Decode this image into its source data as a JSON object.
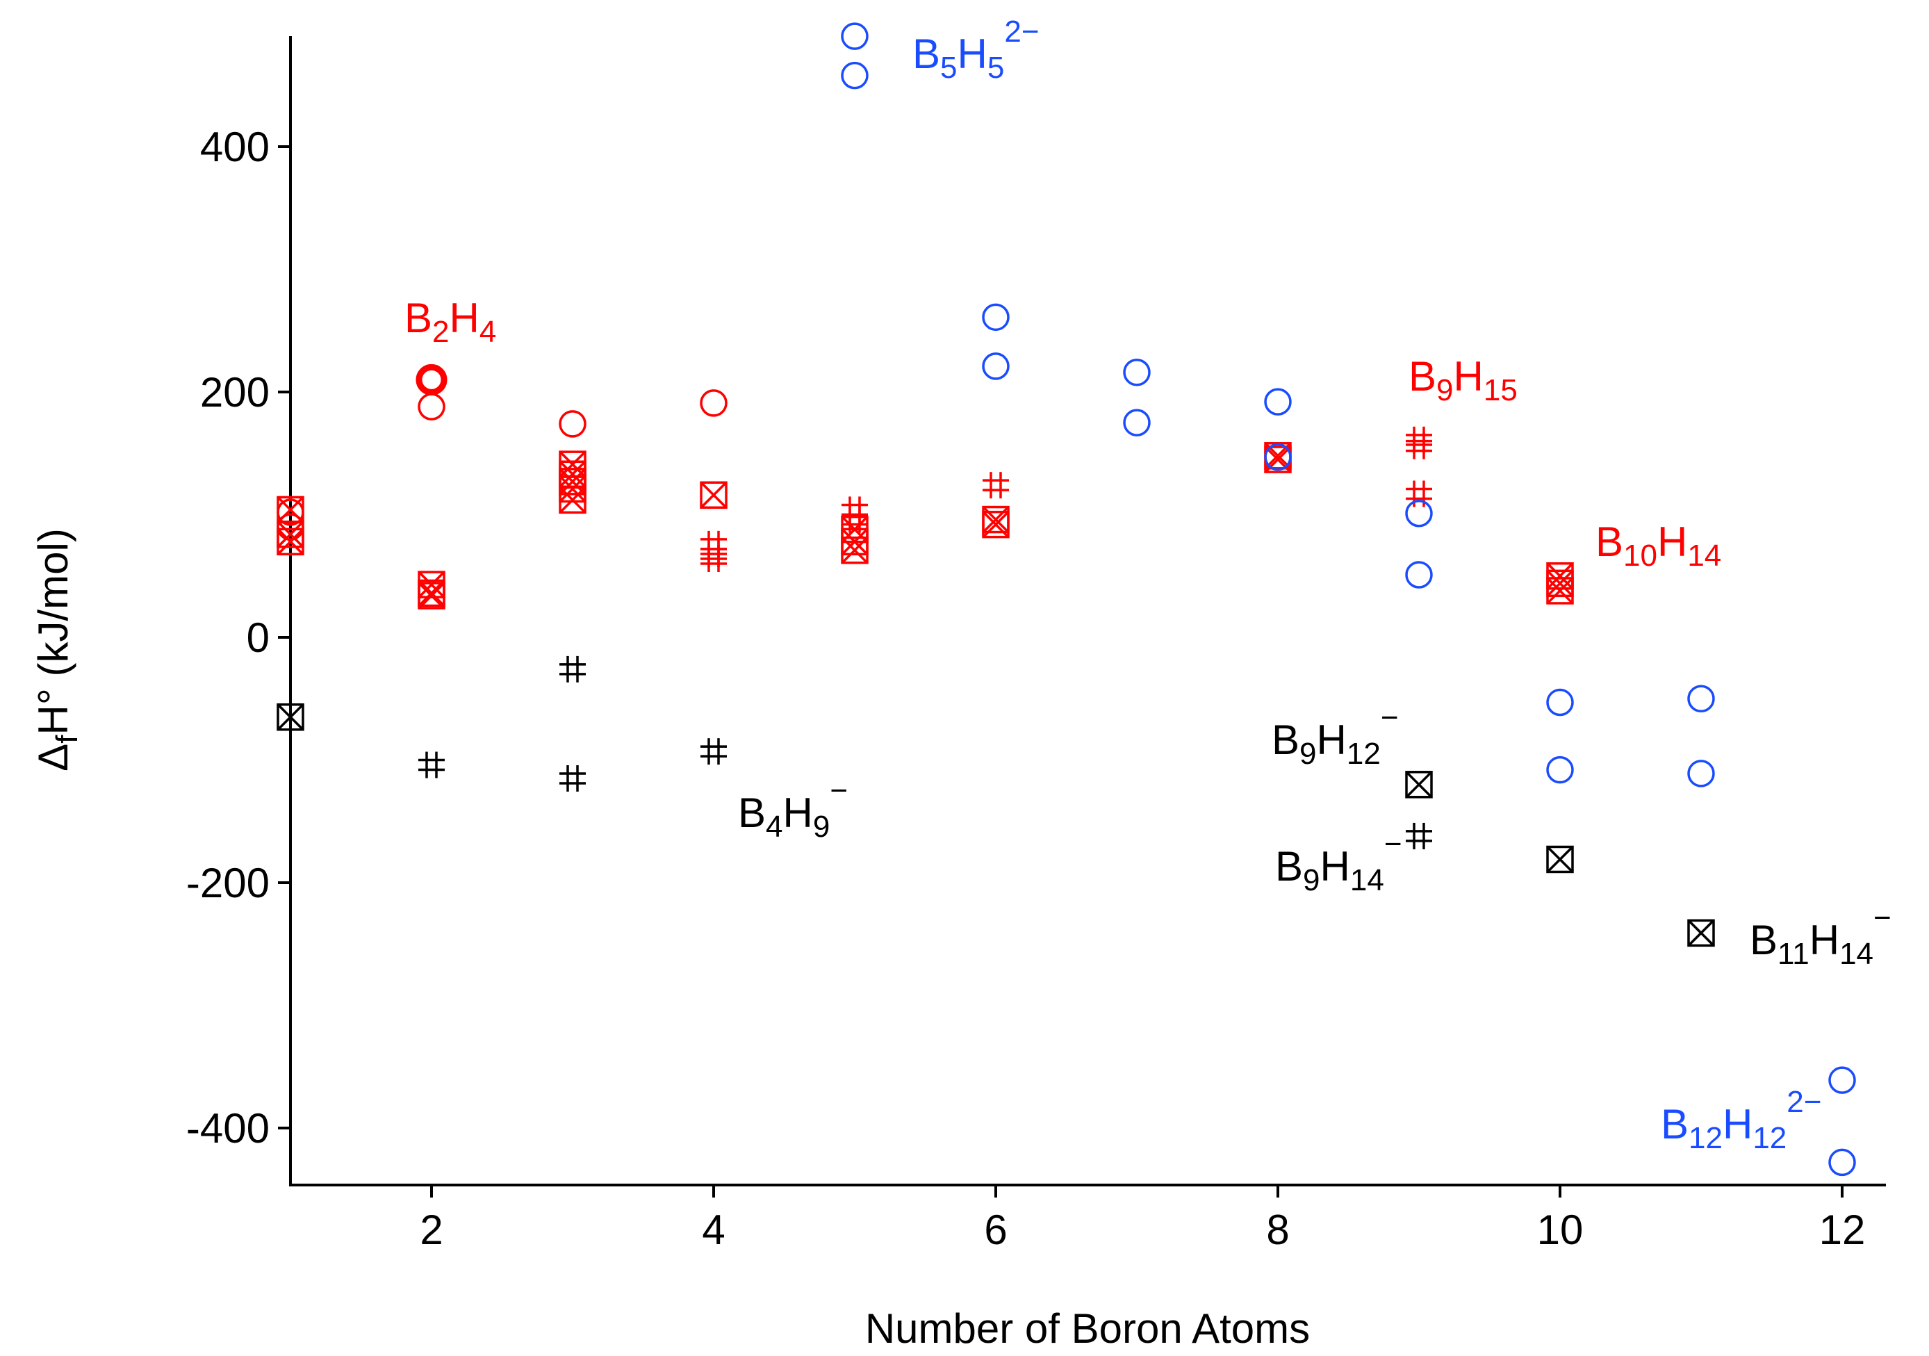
{
  "colors": {
    "red": "#ff0000",
    "blue": "#1a4cff",
    "black": "#000000"
  },
  "chart_data": {
    "type": "scatter",
    "xlabel": "Number of Boron Atoms",
    "ylabel": "ΔfH° (kJ/mol)",
    "ylabel_parts": {
      "pre": "Δ",
      "sub": "f",
      "post": "H° (kJ/mol)"
    },
    "xlim": [
      0.85,
      12.2
    ],
    "ylim": [
      -445,
      490
    ],
    "x_ticks": [
      2,
      4,
      6,
      8,
      10,
      12
    ],
    "y_ticks": [
      -400,
      -200,
      0,
      200,
      400
    ],
    "x_tick_labels": [
      "2",
      "4",
      "6",
      "8",
      "10",
      "12"
    ],
    "y_tick_labels": [
      "-400",
      "-200",
      "0",
      "200",
      "400"
    ],
    "grid": false,
    "series": [
      {
        "color": "red",
        "points": [
          {
            "x": 1,
            "y": 102,
            "marker": "circle"
          },
          {
            "x": 1,
            "y": 90,
            "marker": "circle"
          },
          {
            "x": 1,
            "y": 84,
            "marker": "box-x"
          },
          {
            "x": 1,
            "y": 78,
            "marker": "box-x"
          },
          {
            "x": 1,
            "y": 104,
            "marker": "box-x"
          },
          {
            "x": 2,
            "y": 210,
            "marker": "circle-bold"
          },
          {
            "x": 2,
            "y": 188,
            "marker": "circle"
          },
          {
            "x": 2,
            "y": 43,
            "marker": "box-x"
          },
          {
            "x": 2,
            "y": 36,
            "marker": "box-x"
          },
          {
            "x": 2,
            "y": 34,
            "marker": "box-x"
          },
          {
            "x": 3,
            "y": 174,
            "marker": "circle"
          },
          {
            "x": 3,
            "y": 141,
            "marker": "box-x"
          },
          {
            "x": 3,
            "y": 133,
            "marker": "box-x"
          },
          {
            "x": 3,
            "y": 127,
            "marker": "box-x"
          },
          {
            "x": 3,
            "y": 121,
            "marker": "box-x"
          },
          {
            "x": 3,
            "y": 112,
            "marker": "box-x"
          },
          {
            "x": 4,
            "y": 191,
            "marker": "circle"
          },
          {
            "x": 4,
            "y": 116,
            "marker": "box-x"
          },
          {
            "x": 4,
            "y": 76,
            "marker": "hash"
          },
          {
            "x": 4,
            "y": 68,
            "marker": "hash"
          },
          {
            "x": 4,
            "y": 64,
            "marker": "hash"
          },
          {
            "x": 5,
            "y": 104,
            "marker": "hash"
          },
          {
            "x": 5,
            "y": 96,
            "marker": "hash"
          },
          {
            "x": 5,
            "y": 88,
            "marker": "box-x"
          },
          {
            "x": 5,
            "y": 78,
            "marker": "box-x"
          },
          {
            "x": 5,
            "y": 71,
            "marker": "box-x"
          },
          {
            "x": 6,
            "y": 124,
            "marker": "hash"
          },
          {
            "x": 6,
            "y": 96,
            "marker": "box-x"
          },
          {
            "x": 6,
            "y": 92,
            "marker": "box-x"
          },
          {
            "x": 8,
            "y": 148,
            "marker": "box-x"
          },
          {
            "x": 8,
            "y": 145,
            "marker": "box-x"
          },
          {
            "x": 9,
            "y": 161,
            "marker": "hash"
          },
          {
            "x": 9,
            "y": 156,
            "marker": "hash"
          },
          {
            "x": 9,
            "y": 117,
            "marker": "hash"
          },
          {
            "x": 10,
            "y": 50,
            "marker": "box-x"
          },
          {
            "x": 10,
            "y": 44,
            "marker": "box-x"
          },
          {
            "x": 10,
            "y": 38,
            "marker": "box-x"
          }
        ]
      },
      {
        "color": "blue",
        "points": [
          {
            "x": 5,
            "y": 490,
            "marker": "circle"
          },
          {
            "x": 5,
            "y": 458,
            "marker": "circle"
          },
          {
            "x": 6,
            "y": 261,
            "marker": "circle"
          },
          {
            "x": 6,
            "y": 221,
            "marker": "circle"
          },
          {
            "x": 7,
            "y": 216,
            "marker": "circle"
          },
          {
            "x": 7,
            "y": 175,
            "marker": "circle"
          },
          {
            "x": 8,
            "y": 192,
            "marker": "circle"
          },
          {
            "x": 8,
            "y": 147,
            "marker": "circle"
          },
          {
            "x": 9,
            "y": 101,
            "marker": "circle"
          },
          {
            "x": 9,
            "y": 51,
            "marker": "circle"
          },
          {
            "x": 10,
            "y": -53,
            "marker": "circle"
          },
          {
            "x": 10,
            "y": -108,
            "marker": "circle"
          },
          {
            "x": 11,
            "y": -50,
            "marker": "circle"
          },
          {
            "x": 11,
            "y": -111,
            "marker": "circle"
          },
          {
            "x": 12,
            "y": -361,
            "marker": "circle"
          },
          {
            "x": 12,
            "y": -428,
            "marker": "circle"
          }
        ]
      },
      {
        "color": "black",
        "points": [
          {
            "x": 1,
            "y": -65,
            "marker": "box-x"
          },
          {
            "x": 2,
            "y": -104,
            "marker": "hash"
          },
          {
            "x": 3,
            "y": -26,
            "marker": "hash"
          },
          {
            "x": 3,
            "y": -115,
            "marker": "hash"
          },
          {
            "x": 4,
            "y": -93,
            "marker": "hash"
          },
          {
            "x": 9,
            "y": -120,
            "marker": "box-x"
          },
          {
            "x": 9,
            "y": -162,
            "marker": "hash"
          },
          {
            "x": 10,
            "y": -181,
            "marker": "box-x"
          },
          {
            "x": 11,
            "y": -241,
            "marker": "box-x"
          }
        ]
      }
    ],
    "annotations": [
      {
        "id": "b5h5",
        "color": "blue",
        "parts": [
          {
            "t": "B"
          },
          {
            "t": "5",
            "s": "sub"
          },
          {
            "t": "H"
          },
          {
            "t": "5",
            "s": "sub"
          },
          {
            "t": "2−",
            "s": "sup"
          }
        ]
      },
      {
        "id": "b2h4",
        "color": "red",
        "parts": [
          {
            "t": "B"
          },
          {
            "t": "2",
            "s": "sub"
          },
          {
            "t": "H"
          },
          {
            "t": "4",
            "s": "sub"
          }
        ]
      },
      {
        "id": "b9h15",
        "color": "red",
        "parts": [
          {
            "t": "B"
          },
          {
            "t": "9",
            "s": "sub"
          },
          {
            "t": "H"
          },
          {
            "t": "15",
            "s": "sub"
          }
        ]
      },
      {
        "id": "b10h14",
        "color": "red",
        "parts": [
          {
            "t": "B"
          },
          {
            "t": "10",
            "s": "sub"
          },
          {
            "t": "H"
          },
          {
            "t": "14",
            "s": "sub"
          }
        ]
      },
      {
        "id": "b4h9",
        "color": "black",
        "parts": [
          {
            "t": "B"
          },
          {
            "t": "4",
            "s": "sub"
          },
          {
            "t": "H"
          },
          {
            "t": "9",
            "s": "sub"
          },
          {
            "t": "−",
            "s": "sup"
          }
        ]
      },
      {
        "id": "b9h12",
        "color": "black",
        "parts": [
          {
            "t": "B"
          },
          {
            "t": "9",
            "s": "sub"
          },
          {
            "t": "H"
          },
          {
            "t": "12",
            "s": "sub"
          },
          {
            "t": "−",
            "s": "sup"
          }
        ]
      },
      {
        "id": "b9h14",
        "color": "black",
        "parts": [
          {
            "t": "B"
          },
          {
            "t": "9",
            "s": "sub"
          },
          {
            "t": "H"
          },
          {
            "t": "14",
            "s": "sub"
          },
          {
            "t": "−",
            "s": "sup"
          }
        ]
      },
      {
        "id": "b11h14",
        "color": "black",
        "parts": [
          {
            "t": "B"
          },
          {
            "t": "11",
            "s": "sub"
          },
          {
            "t": "H"
          },
          {
            "t": "14",
            "s": "sub"
          },
          {
            "t": "−",
            "s": "sup"
          }
        ]
      },
      {
        "id": "b12h12",
        "color": "blue",
        "parts": [
          {
            "t": "B"
          },
          {
            "t": "12",
            "s": "sub"
          },
          {
            "t": "H"
          },
          {
            "t": "12",
            "s": "sub"
          },
          {
            "t": "2−",
            "s": "sup"
          }
        ]
      }
    ]
  }
}
